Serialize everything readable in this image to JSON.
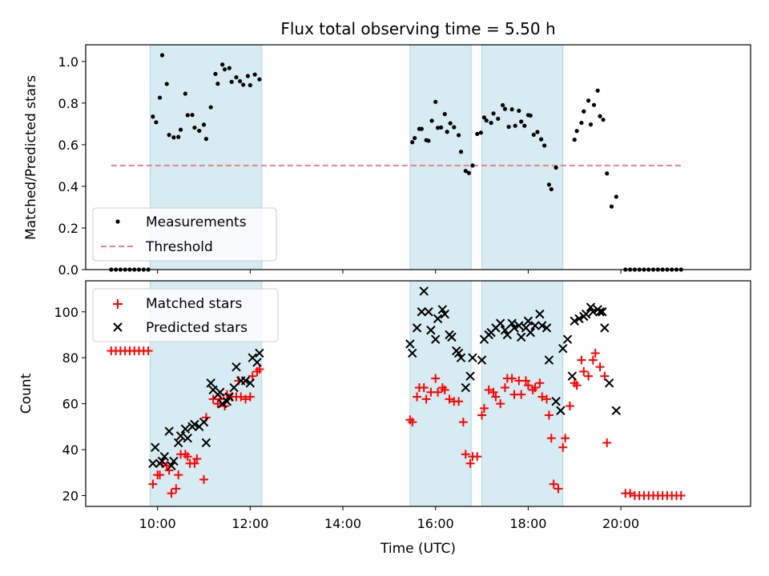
{
  "chart_data": {
    "type": "scatter",
    "title": "Flux total observing time = 5.50 h",
    "xlabel": "Time (UTC)",
    "xlim": [
      8.45,
      22.8
    ],
    "xticks": [
      {
        "v": 10,
        "label": "10:00"
      },
      {
        "v": 12,
        "label": "12:00"
      },
      {
        "v": 14,
        "label": "14:00"
      },
      {
        "v": 16,
        "label": "16:00"
      },
      {
        "v": 18,
        "label": "18:00"
      },
      {
        "v": 20,
        "label": "20:00"
      }
    ],
    "observing_windows": [
      [
        9.84,
        12.25
      ],
      [
        15.45,
        16.77
      ],
      [
        17.0,
        18.75
      ]
    ],
    "top": {
      "ylabel": "Matched/Predicted stars",
      "ylim": [
        0,
        1.08
      ],
      "yticks": [
        {
          "v": 0,
          "label": "0.0"
        },
        {
          "v": 0.2,
          "label": "0.2"
        },
        {
          "v": 0.4,
          "label": "0.4"
        },
        {
          "v": 0.6,
          "label": "0.6"
        },
        {
          "v": 0.8,
          "label": "0.8"
        },
        {
          "v": 1.0,
          "label": "1.0"
        }
      ],
      "legend": [
        {
          "name": "Measurements"
        },
        {
          "name": "Threshold"
        }
      ],
      "threshold": {
        "value": 0.5,
        "x": [
          9.0,
          21.3
        ]
      },
      "measurements": [
        [
          9.0,
          0
        ],
        [
          9.1,
          0
        ],
        [
          9.2,
          0
        ],
        [
          9.3,
          0
        ],
        [
          9.4,
          0
        ],
        [
          9.5,
          0
        ],
        [
          9.6,
          0
        ],
        [
          9.7,
          0
        ],
        [
          9.8,
          0
        ],
        [
          9.9,
          0.735
        ],
        [
          9.97,
          0.708
        ],
        [
          10.05,
          0.826
        ],
        [
          10.1,
          1.03
        ],
        [
          10.2,
          0.892
        ],
        [
          10.25,
          0.647
        ],
        [
          10.35,
          0.635
        ],
        [
          10.45,
          0.637
        ],
        [
          10.5,
          0.672
        ],
        [
          10.6,
          0.845
        ],
        [
          10.65,
          0.742
        ],
        [
          10.75,
          0.743
        ],
        [
          10.8,
          0.682
        ],
        [
          10.9,
          0.667
        ],
        [
          11.0,
          0.696
        ],
        [
          11.05,
          0.628
        ],
        [
          11.15,
          0.78
        ],
        [
          11.25,
          0.94
        ],
        [
          11.3,
          0.893
        ],
        [
          11.4,
          0.985
        ],
        [
          11.45,
          0.962
        ],
        [
          11.55,
          0.968
        ],
        [
          11.6,
          0.902
        ],
        [
          11.7,
          0.924
        ],
        [
          11.78,
          0.905
        ],
        [
          11.85,
          0.888
        ],
        [
          11.95,
          0.93
        ],
        [
          12.0,
          0.886
        ],
        [
          12.1,
          0.937
        ],
        [
          12.2,
          0.914
        ],
        [
          15.5,
          0.612
        ],
        [
          15.55,
          0.632
        ],
        [
          15.65,
          0.676
        ],
        [
          15.7,
          0.676
        ],
        [
          15.8,
          0.622
        ],
        [
          15.85,
          0.619
        ],
        [
          15.92,
          0.715
        ],
        [
          16.0,
          0.806
        ],
        [
          16.05,
          0.681
        ],
        [
          16.12,
          0.683
        ],
        [
          16.2,
          0.747
        ],
        [
          16.25,
          0.662
        ],
        [
          16.32,
          0.703
        ],
        [
          16.4,
          0.684
        ],
        [
          16.5,
          0.646
        ],
        [
          16.55,
          0.566
        ],
        [
          16.65,
          0.474
        ],
        [
          16.72,
          0.464
        ],
        [
          16.8,
          0.5
        ],
        [
          16.9,
          0.652
        ],
        [
          16.98,
          0.658
        ],
        [
          17.05,
          0.731
        ],
        [
          17.1,
          0.716
        ],
        [
          17.2,
          0.705
        ],
        [
          17.25,
          0.75
        ],
        [
          17.35,
          0.725
        ],
        [
          17.45,
          0.79
        ],
        [
          17.5,
          0.772
        ],
        [
          17.58,
          0.686
        ],
        [
          17.65,
          0.77
        ],
        [
          17.72,
          0.691
        ],
        [
          17.8,
          0.763
        ],
        [
          17.85,
          0.711
        ],
        [
          17.92,
          0.691
        ],
        [
          18.0,
          0.742
        ],
        [
          18.05,
          0.74
        ],
        [
          18.12,
          0.648
        ],
        [
          18.2,
          0.661
        ],
        [
          18.28,
          0.626
        ],
        [
          18.35,
          0.596
        ],
        [
          18.45,
          0.408
        ],
        [
          18.5,
          0.386
        ],
        [
          18.6,
          0.49
        ],
        [
          19.0,
          0.624
        ],
        [
          19.05,
          0.666
        ],
        [
          19.15,
          0.705
        ],
        [
          19.2,
          0.76
        ],
        [
          19.3,
          0.812
        ],
        [
          19.35,
          0.697
        ],
        [
          19.42,
          0.791
        ],
        [
          19.5,
          0.86
        ],
        [
          19.55,
          0.737
        ],
        [
          19.62,
          0.72
        ],
        [
          19.7,
          0.462
        ],
        [
          19.8,
          0.303
        ],
        [
          19.9,
          0.35
        ],
        [
          20.1,
          0
        ],
        [
          20.2,
          0
        ],
        [
          20.3,
          0
        ],
        [
          20.4,
          0
        ],
        [
          20.5,
          0
        ],
        [
          20.6,
          0
        ],
        [
          20.7,
          0
        ],
        [
          20.8,
          0
        ],
        [
          20.9,
          0
        ],
        [
          21.0,
          0
        ],
        [
          21.1,
          0
        ],
        [
          21.2,
          0
        ],
        [
          21.3,
          0
        ]
      ]
    },
    "bottom": {
      "ylabel": "Count",
      "ylim": [
        15.3,
        113.5
      ],
      "yticks": [
        {
          "v": 20,
          "label": "20"
        },
        {
          "v": 40,
          "label": "40"
        },
        {
          "v": 60,
          "label": "60"
        },
        {
          "v": 80,
          "label": "80"
        },
        {
          "v": 100,
          "label": "100"
        }
      ],
      "legend": [
        {
          "name": "Matched stars"
        },
        {
          "name": "Predicted stars"
        }
      ],
      "matched": [
        [
          9.0,
          83
        ],
        [
          9.1,
          83
        ],
        [
          9.2,
          83
        ],
        [
          9.3,
          83
        ],
        [
          9.4,
          83
        ],
        [
          9.5,
          83
        ],
        [
          9.6,
          83
        ],
        [
          9.7,
          83
        ],
        [
          9.8,
          83
        ],
        [
          9.9,
          25
        ],
        [
          10.0,
          29
        ],
        [
          10.05,
          29
        ],
        [
          10.1,
          34
        ],
        [
          10.2,
          33
        ],
        [
          10.25,
          31
        ],
        [
          10.3,
          21
        ],
        [
          10.4,
          23
        ],
        [
          10.45,
          29
        ],
        [
          10.5,
          38
        ],
        [
          10.6,
          38
        ],
        [
          10.65,
          37
        ],
        [
          10.7,
          34
        ],
        [
          10.8,
          34
        ],
        [
          10.85,
          36
        ],
        [
          11.0,
          27
        ],
        [
          11.05,
          54
        ],
        [
          11.2,
          62
        ],
        [
          11.3,
          60
        ],
        [
          11.35,
          62
        ],
        [
          11.45,
          59
        ],
        [
          11.5,
          64
        ],
        [
          11.6,
          63
        ],
        [
          11.7,
          63
        ],
        [
          11.75,
          70
        ],
        [
          11.8,
          63
        ],
        [
          11.9,
          62
        ],
        [
          12.0,
          63
        ],
        [
          12.05,
          72
        ],
        [
          12.15,
          74
        ],
        [
          12.2,
          75
        ],
        [
          15.45,
          53
        ],
        [
          15.5,
          52
        ],
        [
          15.6,
          63
        ],
        [
          15.65,
          67
        ],
        [
          15.75,
          67
        ],
        [
          15.8,
          62
        ],
        [
          15.9,
          65
        ],
        [
          16.0,
          71
        ],
        [
          16.05,
          65
        ],
        [
          16.15,
          67
        ],
        [
          16.2,
          66
        ],
        [
          16.3,
          62
        ],
        [
          16.4,
          61
        ],
        [
          16.5,
          61
        ],
        [
          16.6,
          52
        ],
        [
          16.65,
          38
        ],
        [
          16.75,
          34
        ],
        [
          16.8,
          37
        ],
        [
          16.9,
          37
        ],
        [
          17.0,
          55
        ],
        [
          17.05,
          58
        ],
        [
          17.15,
          66
        ],
        [
          17.25,
          65
        ],
        [
          17.3,
          63
        ],
        [
          17.4,
          60
        ],
        [
          17.5,
          67
        ],
        [
          17.55,
          71
        ],
        [
          17.65,
          71
        ],
        [
          17.7,
          64
        ],
        [
          17.8,
          70
        ],
        [
          17.85,
          64
        ],
        [
          17.95,
          70
        ],
        [
          18.0,
          68
        ],
        [
          18.1,
          66
        ],
        [
          18.15,
          67
        ],
        [
          18.25,
          69
        ],
        [
          18.3,
          63
        ],
        [
          18.4,
          62
        ],
        [
          18.45,
          55
        ],
        [
          18.5,
          45
        ],
        [
          18.55,
          25
        ],
        [
          18.65,
          23
        ],
        [
          18.75,
          41
        ],
        [
          18.8,
          45
        ],
        [
          18.9,
          59
        ],
        [
          19.0,
          69
        ],
        [
          19.05,
          68
        ],
        [
          19.15,
          79
        ],
        [
          19.2,
          74
        ],
        [
          19.3,
          72
        ],
        [
          19.4,
          79
        ],
        [
          19.45,
          82
        ],
        [
          19.55,
          76
        ],
        [
          19.65,
          72
        ],
        [
          19.7,
          43
        ],
        [
          20.1,
          21
        ],
        [
          20.2,
          21
        ],
        [
          20.3,
          20
        ],
        [
          20.4,
          20
        ],
        [
          20.5,
          20
        ],
        [
          20.6,
          20
        ],
        [
          20.7,
          20
        ],
        [
          20.8,
          20
        ],
        [
          20.9,
          20
        ],
        [
          21.0,
          20
        ],
        [
          21.1,
          20
        ],
        [
          21.2,
          20
        ],
        [
          21.3,
          20
        ]
      ],
      "predicted": [
        [
          9.9,
          34
        ],
        [
          9.95,
          41
        ],
        [
          10.05,
          34
        ],
        [
          10.1,
          35
        ],
        [
          10.15,
          37
        ],
        [
          10.25,
          48
        ],
        [
          10.3,
          33
        ],
        [
          10.35,
          35
        ],
        [
          10.45,
          43
        ],
        [
          10.5,
          46
        ],
        [
          10.6,
          49
        ],
        [
          10.65,
          45
        ],
        [
          10.75,
          50
        ],
        [
          10.8,
          51
        ],
        [
          10.9,
          50
        ],
        [
          11.0,
          52
        ],
        [
          11.05,
          43
        ],
        [
          11.15,
          69
        ],
        [
          11.2,
          66
        ],
        [
          11.3,
          64
        ],
        [
          11.35,
          65
        ],
        [
          11.4,
          60
        ],
        [
          11.5,
          61
        ],
        [
          11.55,
          63
        ],
        [
          11.65,
          67
        ],
        [
          11.7,
          76
        ],
        [
          11.8,
          70
        ],
        [
          11.9,
          70
        ],
        [
          12.0,
          69
        ],
        [
          12.05,
          80
        ],
        [
          12.15,
          78
        ],
        [
          12.2,
          82
        ],
        [
          15.45,
          86
        ],
        [
          15.5,
          82
        ],
        [
          15.6,
          93
        ],
        [
          15.7,
          100
        ],
        [
          15.75,
          109
        ],
        [
          15.85,
          100
        ],
        [
          15.9,
          92
        ],
        [
          16.0,
          88
        ],
        [
          16.05,
          97
        ],
        [
          16.15,
          101
        ],
        [
          16.2,
          99
        ],
        [
          16.3,
          90
        ],
        [
          16.35,
          89
        ],
        [
          16.45,
          83
        ],
        [
          16.5,
          82
        ],
        [
          16.55,
          80
        ],
        [
          16.65,
          67
        ],
        [
          16.75,
          72
        ],
        [
          16.8,
          80
        ],
        [
          17.0,
          79
        ],
        [
          17.05,
          88
        ],
        [
          17.15,
          90
        ],
        [
          17.2,
          91
        ],
        [
          17.3,
          93
        ],
        [
          17.4,
          95
        ],
        [
          17.5,
          92
        ],
        [
          17.55,
          90
        ],
        [
          17.65,
          95
        ],
        [
          17.7,
          93
        ],
        [
          17.8,
          94
        ],
        [
          17.85,
          89
        ],
        [
          17.95,
          93
        ],
        [
          18.0,
          96
        ],
        [
          18.05,
          91
        ],
        [
          18.15,
          94
        ],
        [
          18.25,
          99
        ],
        [
          18.3,
          94
        ],
        [
          18.4,
          93
        ],
        [
          18.45,
          79
        ],
        [
          18.6,
          61
        ],
        [
          18.7,
          57
        ],
        [
          18.75,
          84
        ],
        [
          18.85,
          88
        ],
        [
          18.95,
          72
        ],
        [
          19.0,
          96
        ],
        [
          19.1,
          97
        ],
        [
          19.2,
          98
        ],
        [
          19.25,
          99
        ],
        [
          19.35,
          102
        ],
        [
          19.4,
          100
        ],
        [
          19.5,
          101
        ],
        [
          19.55,
          100
        ],
        [
          19.6,
          100
        ],
        [
          19.65,
          93
        ],
        [
          19.75,
          69
        ],
        [
          19.9,
          57
        ]
      ]
    }
  }
}
